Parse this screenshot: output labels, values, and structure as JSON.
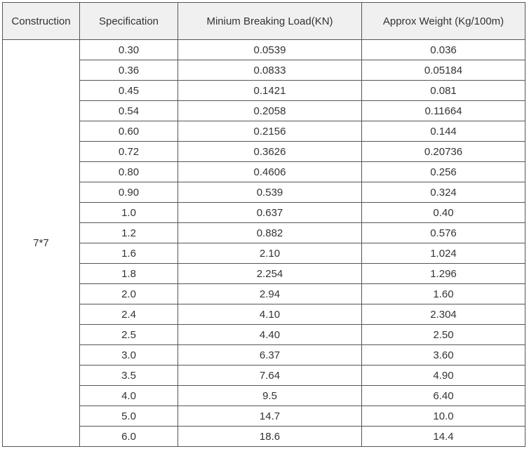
{
  "table": {
    "headers": [
      "Construction",
      "Specification",
      "Minium Breaking Load(KN)",
      "Approx Weight  (Kg/100m)"
    ],
    "construction": "7*7",
    "rows": [
      [
        "0.30",
        "0.0539",
        "0.036"
      ],
      [
        "0.36",
        "0.0833",
        "0.05184"
      ],
      [
        "0.45",
        "0.1421",
        "0.081"
      ],
      [
        "0.54",
        "0.2058",
        "0.11664"
      ],
      [
        "0.60",
        "0.2156",
        "0.144"
      ],
      [
        "0.72",
        "0.3626",
        "0.20736"
      ],
      [
        "0.80",
        "0.4606",
        "0.256"
      ],
      [
        "0.90",
        "0.539",
        "0.324"
      ],
      [
        "1.0",
        "0.637",
        "0.40"
      ],
      [
        "1.2",
        "0.882",
        "0.576"
      ],
      [
        "1.6",
        "2.10",
        "1.024"
      ],
      [
        "1.8",
        "2.254",
        "1.296"
      ],
      [
        "2.0",
        "2.94",
        "1.60"
      ],
      [
        "2.4",
        "4.10",
        "2.304"
      ],
      [
        "2.5",
        "4.40",
        "2.50"
      ],
      [
        "3.0",
        "6.37",
        "3.60"
      ],
      [
        "3.5",
        "7.64",
        "4.90"
      ],
      [
        "4.0",
        "9.5",
        "6.40"
      ],
      [
        "5.0",
        "14.7",
        "10.0"
      ],
      [
        "6.0",
        "18.6",
        "14.4"
      ]
    ]
  }
}
